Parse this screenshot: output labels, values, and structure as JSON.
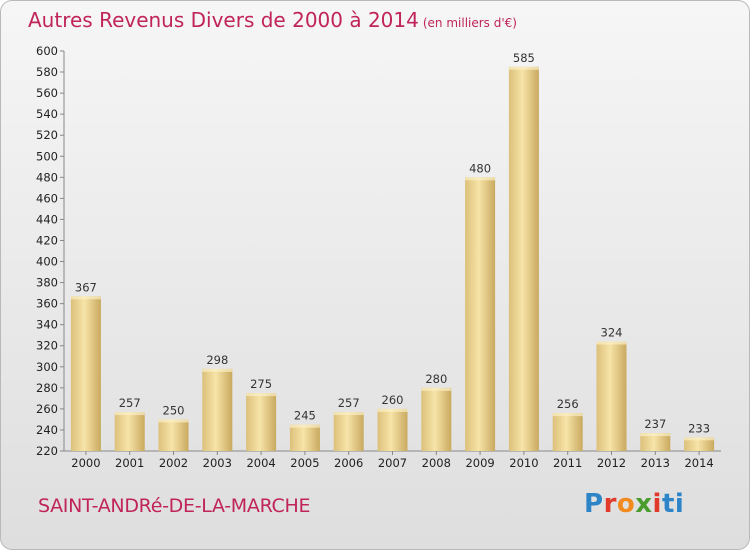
{
  "chart_data": {
    "type": "bar",
    "title": "Autres Revenus Divers de 2000 à 2014",
    "subtitle": "(en milliers d'€)",
    "categories": [
      "2000",
      "2001",
      "2002",
      "2003",
      "2004",
      "2005",
      "2006",
      "2007",
      "2008",
      "2009",
      "2010",
      "2011",
      "2012",
      "2013",
      "2014"
    ],
    "values": [
      367,
      257,
      250,
      298,
      275,
      245,
      257,
      260,
      280,
      480,
      585,
      256,
      324,
      237,
      233
    ],
    "ylim": [
      220,
      600
    ],
    "yticks": [
      220,
      240,
      260,
      280,
      300,
      320,
      340,
      360,
      380,
      400,
      420,
      440,
      460,
      480,
      500,
      520,
      540,
      560,
      580,
      600
    ],
    "grid": false,
    "bar_color": "#e8cf85"
  },
  "footer": {
    "commune": "SAINT-ANDRé-DE-LA-MARCHE",
    "logo_letters": [
      "P",
      "r",
      "o",
      "x",
      "i",
      "ti"
    ]
  },
  "colors": {
    "title": "#c0245a",
    "bar_light": "#f6e2a4",
    "bar_dark": "#cfb06a"
  }
}
